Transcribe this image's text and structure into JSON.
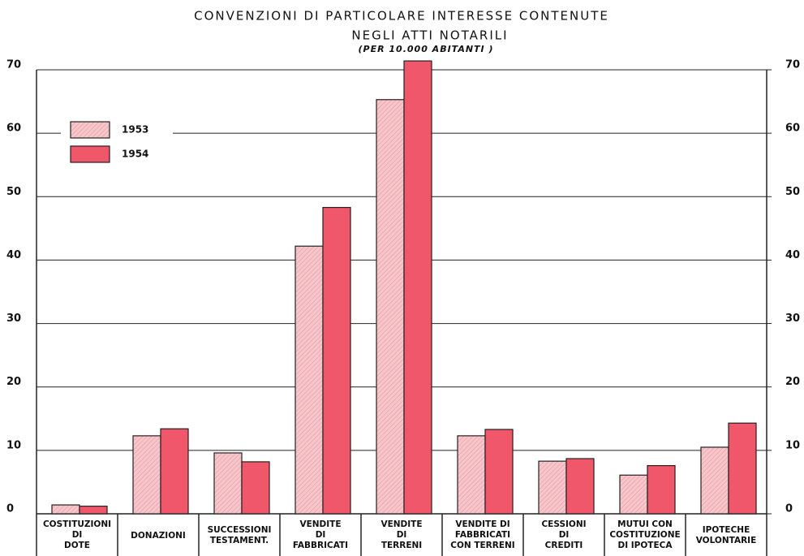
{
  "chart_data": {
    "type": "bar",
    "title": "CONVENZIONI DI PARTICOLARE INTERESSE CONTENUTE",
    "title2": "NEGLI ATTI NOTARILI",
    "subtitle": "(PER 10.000 ABITANTI )",
    "categories": [
      [
        "COSTITUZIONI",
        "DI",
        "DOTE"
      ],
      [
        "DONAZIONI"
      ],
      [
        "SUCCESSIONI",
        "TESTAMENT."
      ],
      [
        "VENDITE",
        "DI",
        "FABBRICATI"
      ],
      [
        "VENDITE",
        "DI",
        "TERRENI"
      ],
      [
        "VENDITE DI",
        "FABBRICATI",
        "CON TERRENI"
      ],
      [
        "CESSIONI",
        "DI",
        "CREDITI"
      ],
      [
        "MUTUI CON",
        "COSTITUZIONE",
        "DI IPOTECA"
      ],
      [
        "IPOTECHE",
        "VOLONTARIE"
      ]
    ],
    "series": [
      {
        "name": "1953",
        "color": "#f7c6ca",
        "values": [
          1.4,
          12.3,
          9.6,
          42.2,
          65.3,
          12.3,
          8.3,
          6.1,
          10.5
        ]
      },
      {
        "name": "1954",
        "color": "#f0576a",
        "values": [
          1.2,
          13.4,
          8.2,
          48.3,
          71.4,
          13.3,
          8.7,
          7.6,
          14.3
        ]
      }
    ],
    "ylim": [
      0,
      70
    ],
    "yticks": [
      0,
      10,
      20,
      30,
      40,
      50,
      60,
      70
    ],
    "y2lim": [
      0,
      70
    ],
    "y2ticks": [
      0,
      10,
      20,
      30,
      40,
      50,
      60,
      70
    ],
    "grid": true,
    "legend": "upper left"
  }
}
